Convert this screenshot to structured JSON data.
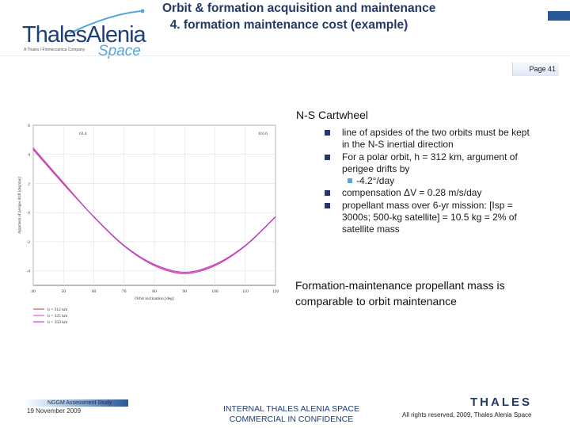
{
  "header": {
    "logo_name": "ThalesAlenia",
    "logo_tagline": "A Thales / Finmeccanica Company",
    "logo_space": "Space",
    "title_line1": "Orbit & formation acquisition and maintenance",
    "title_line2": "4. formation maintenance cost (example)",
    "page_label": "Page 41"
  },
  "colors": {
    "brand_blue": "#243a66",
    "accent_blue": "#2a5798",
    "light_blue": "#5aa7d9"
  },
  "chart_data": {
    "type": "line",
    "xlabel": "Orbit inclination [deg]",
    "ylabel": "Argument of perigee drift [deg/day]",
    "xlim": [
      40,
      120
    ],
    "ylim": [
      -5,
      6
    ],
    "xticks": [
      40,
      50,
      60,
      70,
      80,
      90,
      100,
      110,
      120
    ],
    "yticks": [
      -4,
      -2,
      0,
      2,
      4,
      6
    ],
    "corner_labels": [
      "63.4",
      "116.6"
    ],
    "grid": true,
    "legend_position": "lower-left outside",
    "x": [
      40,
      50,
      60,
      70,
      80,
      90,
      100,
      110,
      120
    ],
    "series": [
      {
        "name": "h = 312 km",
        "color": "#e03a6e",
        "values": [
          4.45,
          2.05,
          -0.3,
          -2.3,
          -3.65,
          -4.2,
          -3.65,
          -2.3,
          -0.3
        ]
      },
      {
        "name": "h = 325 km",
        "color": "#d65ac8",
        "values": [
          4.4,
          2.0,
          -0.3,
          -2.3,
          -3.62,
          -4.17,
          -3.62,
          -2.3,
          -0.3
        ]
      },
      {
        "name": "h = 350 km",
        "color": "#b13cc2",
        "values": [
          4.32,
          1.95,
          -0.28,
          -2.26,
          -3.56,
          -4.1,
          -3.56,
          -2.26,
          -0.28
        ]
      }
    ]
  },
  "content": {
    "heading": "N-S Cartwheel",
    "bullets": [
      "line of apsides of the two orbits must be kept in the N-S inertial direction",
      "For a polar orbit, h = 312 km, argument of perigee drifts by",
      "compensation ΔV = 0.28 m/s/day",
      "propellant mass over 6-yr mission: [Isp = 3000s; 500-kg satellite] = 10.5 kg = 2% of satellite mass"
    ],
    "sub_bullet": "-4.2°/day",
    "conclusion": "Formation-maintenance propellant mass is comparable to orbit maintenance"
  },
  "footer": {
    "study": "NGGM Assessment Study",
    "date": "19 November 2009",
    "confidential_line1": "INTERNAL THALES ALENIA SPACE",
    "confidential_line2": "COMMERCIAL IN CONFIDENCE",
    "thales_logo": "THALES",
    "rights": "All rights reserved, 2009, Thales Alenia Space"
  }
}
